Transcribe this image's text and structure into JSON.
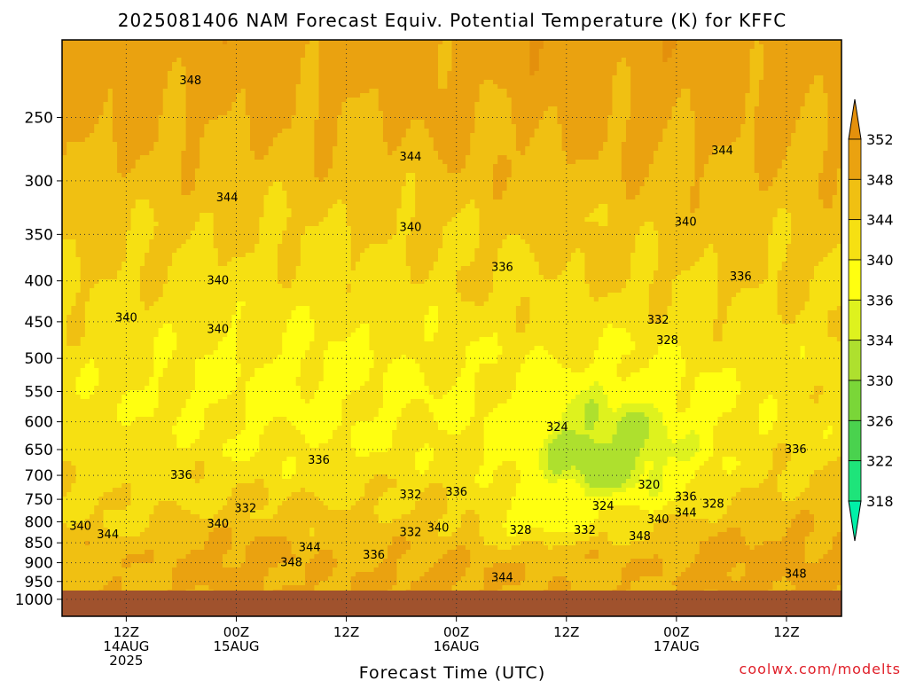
{
  "chart_data": {
    "type": "heatmap",
    "title": "2025081406 NAM Forecast Equiv. Potential Temperature (K) for KFFC",
    "xlabel": "Forecast Time (UTC)",
    "ylabel": "",
    "y_scale": "log-pressure",
    "y_reversed": true,
    "y_range_hPa": [
      200,
      1050
    ],
    "y_ticks": [
      "250",
      "300",
      "350",
      "400",
      "450",
      "500",
      "550",
      "600",
      "650",
      "700",
      "750",
      "800",
      "850",
      "900",
      "950",
      "1000"
    ],
    "y_tick_values_hPa": [
      250,
      300,
      350,
      400,
      450,
      500,
      550,
      600,
      650,
      700,
      750,
      800,
      850,
      900,
      950,
      1000
    ],
    "x_range_hours": [
      -1,
      84
    ],
    "x_ticks": [
      {
        "hour": 6,
        "lines": [
          "12Z",
          "14AUG",
          "2025"
        ]
      },
      {
        "hour": 18,
        "lines": [
          "00Z",
          "15AUG"
        ]
      },
      {
        "hour": 30,
        "lines": [
          "12Z"
        ]
      },
      {
        "hour": 42,
        "lines": [
          "00Z",
          "16AUG"
        ]
      },
      {
        "hour": 54,
        "lines": [
          "12Z"
        ]
      },
      {
        "hour": 66,
        "lines": [
          "00Z",
          "17AUG"
        ]
      },
      {
        "hour": 78,
        "lines": [
          "12Z"
        ]
      }
    ],
    "grid": "dotted",
    "colorbar": {
      "placement": "right",
      "levels": [
        318,
        322,
        326,
        330,
        334,
        336,
        340,
        344,
        348,
        352
      ],
      "colors": [
        "#00f0a8",
        "#1ee47a",
        "#4ad24e",
        "#7ad638",
        "#aee02e",
        "#def21e",
        "#ffff10",
        "#f6e012",
        "#f0c012",
        "#eaa210",
        "#e4900c"
      ],
      "extend": "both"
    },
    "contour_labels": [
      {
        "text": "348",
        "hour": 13,
        "p": 225
      },
      {
        "text": "344",
        "hour": 37,
        "p": 280
      },
      {
        "text": "344",
        "hour": 71,
        "p": 275
      },
      {
        "text": "344",
        "hour": 17,
        "p": 315
      },
      {
        "text": "340",
        "hour": 37,
        "p": 343
      },
      {
        "text": "340",
        "hour": 67,
        "p": 338
      },
      {
        "text": "336",
        "hour": 47,
        "p": 385
      },
      {
        "text": "336",
        "hour": 73,
        "p": 395
      },
      {
        "text": "340",
        "hour": 16,
        "p": 400
      },
      {
        "text": "340",
        "hour": 6,
        "p": 445
      },
      {
        "text": "340",
        "hour": 16,
        "p": 460
      },
      {
        "text": "332",
        "hour": 64,
        "p": 448
      },
      {
        "text": "328",
        "hour": 65,
        "p": 475
      },
      {
        "text": "324",
        "hour": 53,
        "p": 610
      },
      {
        "text": "336",
        "hour": 79,
        "p": 650
      },
      {
        "text": "336",
        "hour": 27,
        "p": 670
      },
      {
        "text": "336",
        "hour": 12,
        "p": 700
      },
      {
        "text": "320",
        "hour": 63,
        "p": 720
      },
      {
        "text": "332",
        "hour": 37,
        "p": 740
      },
      {
        "text": "336",
        "hour": 42,
        "p": 735
      },
      {
        "text": "336",
        "hour": 67,
        "p": 745
      },
      {
        "text": "332",
        "hour": 19,
        "p": 770
      },
      {
        "text": "324",
        "hour": 58,
        "p": 765
      },
      {
        "text": "328",
        "hour": 70,
        "p": 760
      },
      {
        "text": "344",
        "hour": 67,
        "p": 780
      },
      {
        "text": "340",
        "hour": 16,
        "p": 805
      },
      {
        "text": "340",
        "hour": 64,
        "p": 795
      },
      {
        "text": "340",
        "hour": 1,
        "p": 810
      },
      {
        "text": "344",
        "hour": 4,
        "p": 830
      },
      {
        "text": "340",
        "hour": 40,
        "p": 815
      },
      {
        "text": "332",
        "hour": 37,
        "p": 825
      },
      {
        "text": "328",
        "hour": 49,
        "p": 820
      },
      {
        "text": "332",
        "hour": 56,
        "p": 820
      },
      {
        "text": "348",
        "hour": 62,
        "p": 835
      },
      {
        "text": "344",
        "hour": 26,
        "p": 862
      },
      {
        "text": "336",
        "hour": 33,
        "p": 880
      },
      {
        "text": "348",
        "hour": 24,
        "p": 900
      },
      {
        "text": "348",
        "hour": 79,
        "p": 930
      },
      {
        "text": "344",
        "hour": 47,
        "p": 940
      }
    ],
    "field_model": {
      "description": "equivalent potential temperature (K) as a function of forecast hour and pressure",
      "background_top_K": 347,
      "background_bottom_K": 345,
      "min_K": 318,
      "max_K": 352
    }
  },
  "footer": {
    "credit": "coolwx.com/modelts"
  }
}
